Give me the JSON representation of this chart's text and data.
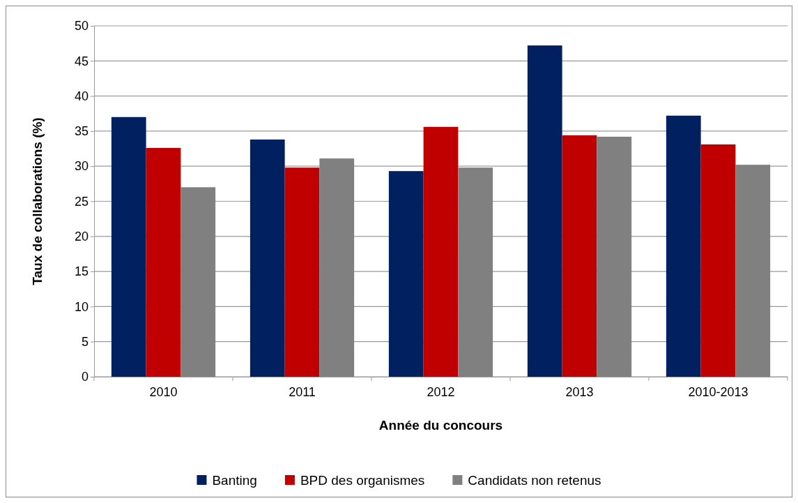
{
  "chart_data": {
    "type": "bar",
    "xlabel": "Année du concours",
    "ylabel": "Taux de collaborations  (%)",
    "categories": [
      "2010",
      "2011",
      "2012",
      "2013",
      "2010-2013"
    ],
    "series": [
      {
        "name": "Banting",
        "color": "#002060",
        "values": [
          37.0,
          33.8,
          29.3,
          47.2,
          37.2
        ]
      },
      {
        "name": "BPD des organismes",
        "color": "#c00000",
        "values": [
          32.6,
          29.8,
          35.6,
          34.4,
          33.1
        ]
      },
      {
        "name": "Candidats non retenus",
        "color": "#808080",
        "values": [
          27.0,
          31.1,
          29.8,
          34.2,
          30.2
        ]
      }
    ],
    "ylim": [
      0,
      50
    ],
    "yticks": [
      0,
      5,
      10,
      15,
      20,
      25,
      30,
      35,
      40,
      45,
      50
    ],
    "grid": "y",
    "legend": "bottom"
  }
}
